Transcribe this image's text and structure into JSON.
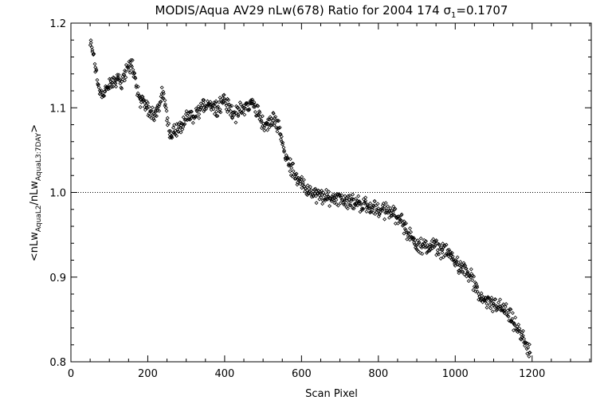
{
  "chart_data": {
    "type": "scatter",
    "title": {
      "main": "MODIS/Aqua AV29 nLw(678) Ratio for 2004 174",
      "sigma_symbol": "σ",
      "sigma_sub": "1",
      "sigma_value": "=0.1707"
    },
    "xlabel": "Scan Pixel",
    "ylabel": {
      "open": "<nLw",
      "sub1": "AquaL2",
      "mid": "/nLw",
      "sub2": "AquaL3:7DAY",
      "close": ">"
    },
    "xlim": [
      0,
      1354
    ],
    "ylim": [
      0.8,
      1.2
    ],
    "x_ticks": [
      0,
      200,
      400,
      600,
      800,
      1000,
      1200
    ],
    "x_tick_labels": [
      "0",
      "200",
      "400",
      "600",
      "800",
      "1000",
      "1200"
    ],
    "y_ticks": [
      0.8,
      0.9,
      1.0,
      1.1,
      1.2
    ],
    "y_tick_labels": [
      "0.8",
      "0.9",
      "1.0",
      "1.1",
      "1.2"
    ],
    "reference_line": {
      "y": 1.0,
      "style": "dotted"
    },
    "marker": "diamond",
    "grid": false,
    "trend": [
      [
        50,
        1.175
      ],
      [
        55,
        1.17
      ],
      [
        60,
        1.16
      ],
      [
        65,
        1.145
      ],
      [
        70,
        1.13
      ],
      [
        80,
        1.115
      ],
      [
        90,
        1.12
      ],
      [
        100,
        1.125
      ],
      [
        110,
        1.13
      ],
      [
        120,
        1.135
      ],
      [
        130,
        1.13
      ],
      [
        140,
        1.14
      ],
      [
        150,
        1.148
      ],
      [
        160,
        1.15
      ],
      [
        165,
        1.14
      ],
      [
        170,
        1.125
      ],
      [
        180,
        1.11
      ],
      [
        190,
        1.105
      ],
      [
        200,
        1.1
      ],
      [
        210,
        1.095
      ],
      [
        220,
        1.095
      ],
      [
        230,
        1.1
      ],
      [
        240,
        1.12
      ],
      [
        245,
        1.105
      ],
      [
        250,
        1.085
      ],
      [
        260,
        1.07
      ],
      [
        270,
        1.072
      ],
      [
        280,
        1.075
      ],
      [
        290,
        1.08
      ],
      [
        300,
        1.085
      ],
      [
        310,
        1.088
      ],
      [
        320,
        1.09
      ],
      [
        330,
        1.095
      ],
      [
        340,
        1.1
      ],
      [
        350,
        1.103
      ],
      [
        360,
        1.107
      ],
      [
        370,
        1.103
      ],
      [
        380,
        1.1
      ],
      [
        390,
        1.105
      ],
      [
        400,
        1.11
      ],
      [
        410,
        1.1
      ],
      [
        420,
        1.095
      ],
      [
        430,
        1.093
      ],
      [
        440,
        1.097
      ],
      [
        450,
        1.1
      ],
      [
        460,
        1.102
      ],
      [
        470,
        1.105
      ],
      [
        480,
        1.1
      ],
      [
        490,
        1.095
      ],
      [
        500,
        1.08
      ],
      [
        510,
        1.078
      ],
      [
        520,
        1.083
      ],
      [
        530,
        1.086
      ],
      [
        540,
        1.08
      ],
      [
        550,
        1.06
      ],
      [
        560,
        1.04
      ],
      [
        580,
        1.025
      ],
      [
        600,
        1.01
      ],
      [
        620,
        1.0
      ],
      [
        640,
        0.997
      ],
      [
        660,
        0.993
      ],
      [
        680,
        0.993
      ],
      [
        700,
        0.995
      ],
      [
        720,
        0.99
      ],
      [
        740,
        0.988
      ],
      [
        760,
        0.986
      ],
      [
        780,
        0.983
      ],
      [
        800,
        0.98
      ],
      [
        820,
        0.978
      ],
      [
        840,
        0.975
      ],
      [
        860,
        0.97
      ],
      [
        870,
        0.955
      ],
      [
        880,
        0.95
      ],
      [
        900,
        0.94
      ],
      [
        920,
        0.935
      ],
      [
        940,
        0.937
      ],
      [
        960,
        0.933
      ],
      [
        980,
        0.928
      ],
      [
        1000,
        0.92
      ],
      [
        1020,
        0.91
      ],
      [
        1040,
        0.9
      ],
      [
        1060,
        0.88
      ],
      [
        1080,
        0.87
      ],
      [
        1100,
        0.868
      ],
      [
        1120,
        0.865
      ],
      [
        1140,
        0.855
      ],
      [
        1160,
        0.84
      ],
      [
        1180,
        0.825
      ],
      [
        1195,
        0.81
      ]
    ],
    "scatter_halfwidth": 0.008,
    "point_count": 900
  }
}
